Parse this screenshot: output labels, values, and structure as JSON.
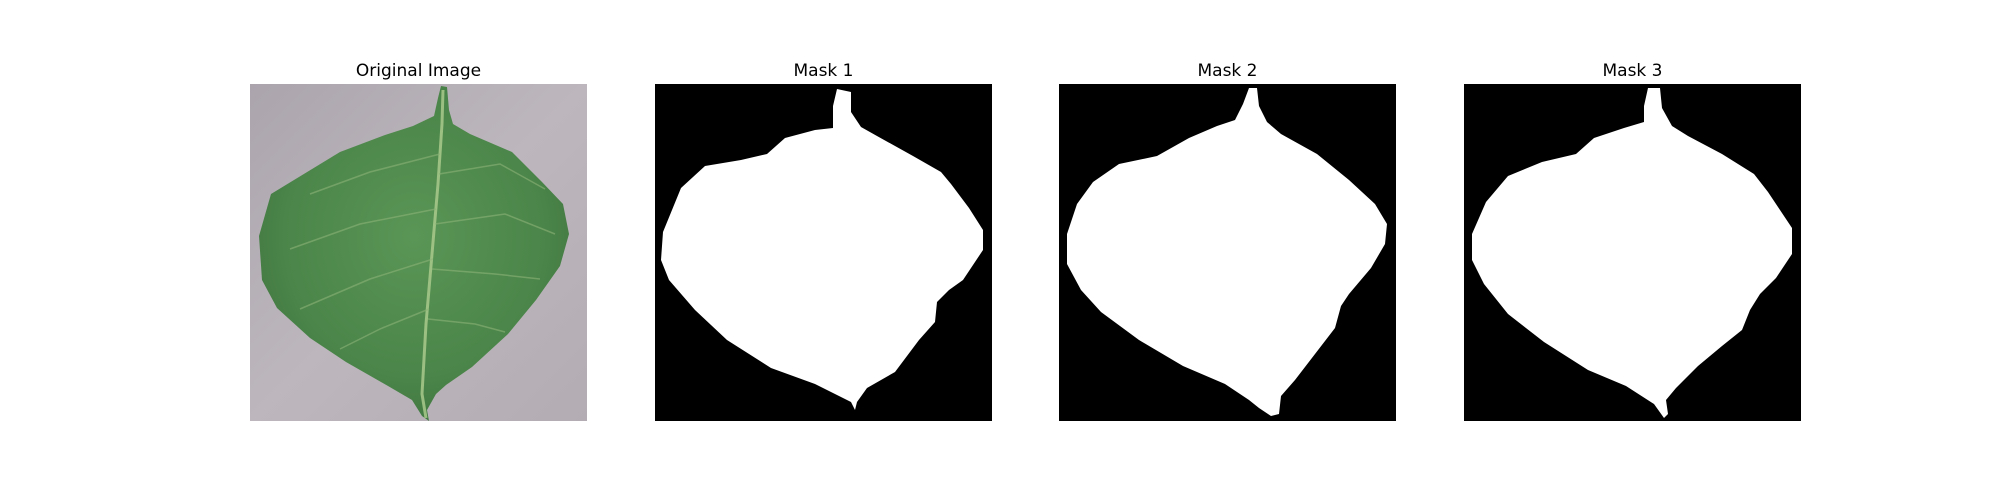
{
  "panels": [
    {
      "title": "Original Image",
      "kind": "photo"
    },
    {
      "title": "Mask 1",
      "kind": "mask"
    },
    {
      "title": "Mask 2",
      "kind": "mask"
    },
    {
      "title": "Mask 3",
      "kind": "mask"
    }
  ],
  "colors": {
    "background_photo": "#b8b2b8",
    "leaf_green": "#4f8a4c",
    "leaf_vein": "#a8c98a",
    "mask_background": "#000000",
    "mask_foreground": "#ffffff"
  }
}
